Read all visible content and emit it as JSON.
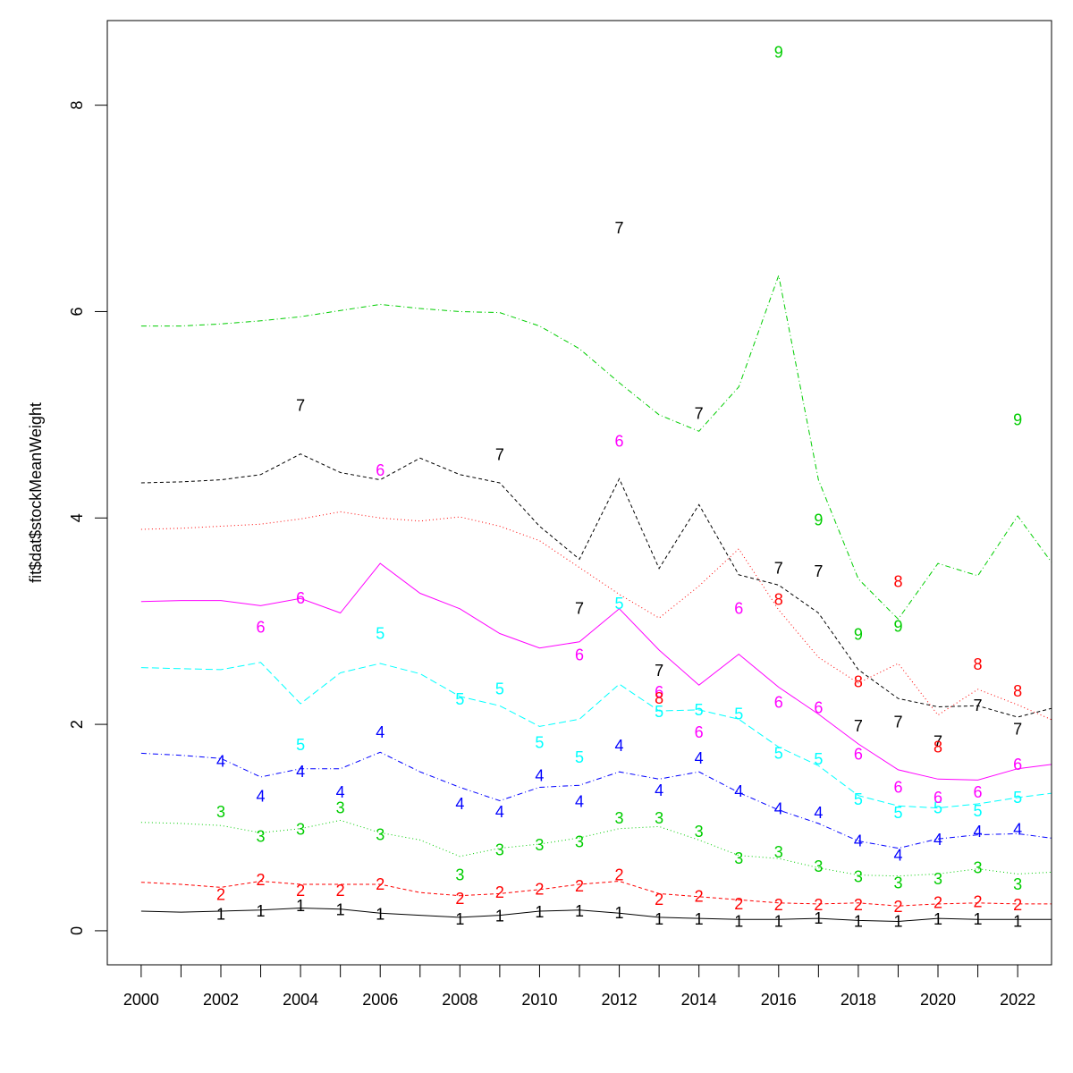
{
  "chart_data": {
    "type": "line",
    "title": "",
    "xlabel": "",
    "ylabel": "fit$dat$stockMeanWeight",
    "xlim": [
      1999.15,
      2022.85
    ],
    "ylim": [
      -0.33,
      8.82
    ],
    "x_ticks": [
      2000,
      2002,
      2004,
      2006,
      2008,
      2010,
      2012,
      2014,
      2016,
      2018,
      2020,
      2022
    ],
    "x_minor_ticks": [
      2000,
      2001,
      2002,
      2003,
      2004,
      2005,
      2006,
      2007,
      2008,
      2009,
      2010,
      2011,
      2012,
      2013,
      2014,
      2015,
      2016,
      2017,
      2018,
      2019,
      2020,
      2021,
      2022
    ],
    "y_ticks": [
      0,
      2,
      4,
      6,
      8
    ],
    "grid": false,
    "years": [
      2000,
      2001,
      2002,
      2003,
      2004,
      2005,
      2006,
      2007,
      2008,
      2009,
      2010,
      2011,
      2012,
      2013,
      2014,
      2015,
      2016,
      2017,
      2018,
      2019,
      2020,
      2021,
      2022,
      2023
    ],
    "series": [
      {
        "label": "1",
        "color": "#000000",
        "dash": "",
        "fitted": [
          0.19,
          0.18,
          0.19,
          0.2,
          0.22,
          0.21,
          0.17,
          0.15,
          0.13,
          0.15,
          0.19,
          0.2,
          0.17,
          0.13,
          0.12,
          0.11,
          0.11,
          0.12,
          0.1,
          0.09,
          0.12,
          0.11,
          0.11,
          0.11
        ],
        "observed": [
          null,
          null,
          0.17,
          0.2,
          0.25,
          0.21,
          0.17,
          null,
          0.12,
          0.15,
          0.19,
          0.2,
          0.18,
          0.12,
          0.12,
          0.1,
          0.1,
          0.13,
          0.1,
          0.1,
          0.12,
          0.12,
          0.1,
          null
        ]
      },
      {
        "label": "2",
        "color": "#ff0000",
        "dash": "4,3",
        "fitted": [
          0.47,
          0.45,
          0.42,
          0.48,
          0.45,
          0.45,
          0.45,
          0.37,
          0.34,
          0.36,
          0.4,
          0.45,
          0.48,
          0.36,
          0.33,
          0.3,
          0.27,
          0.26,
          0.27,
          0.24,
          0.26,
          0.27,
          0.26,
          0.26
        ],
        "observed": [
          null,
          null,
          0.36,
          0.5,
          0.4,
          0.4,
          0.46,
          null,
          0.32,
          0.38,
          0.41,
          0.44,
          0.55,
          0.31,
          0.34,
          0.27,
          0.26,
          0.26,
          0.26,
          0.24,
          0.28,
          0.29,
          0.26,
          null
        ]
      },
      {
        "label": "3",
        "color": "#00cd00",
        "dash": "1,3",
        "fitted": [
          1.05,
          1.04,
          1.02,
          0.95,
          0.99,
          1.07,
          0.95,
          0.88,
          0.72,
          0.8,
          0.84,
          0.9,
          0.99,
          1.01,
          0.88,
          0.73,
          0.7,
          0.61,
          0.54,
          0.53,
          0.55,
          0.6,
          0.55,
          0.57
        ],
        "observed": [
          null,
          null,
          1.16,
          0.92,
          0.99,
          1.2,
          0.94,
          null,
          0.55,
          0.79,
          0.84,
          0.87,
          1.1,
          1.1,
          0.97,
          0.71,
          0.77,
          0.63,
          0.53,
          0.47,
          0.51,
          0.62,
          0.46,
          null
        ]
      },
      {
        "label": "4",
        "color": "#0000ff",
        "dash": "6,3,1,3",
        "fitted": [
          1.72,
          1.7,
          1.67,
          1.49,
          1.57,
          1.57,
          1.73,
          1.54,
          1.39,
          1.26,
          1.39,
          1.41,
          1.54,
          1.47,
          1.54,
          1.34,
          1.17,
          1.04,
          0.87,
          0.8,
          0.89,
          0.93,
          0.94,
          0.89
        ],
        "observed": [
          null,
          null,
          1.65,
          1.31,
          1.55,
          1.35,
          1.93,
          null,
          1.24,
          1.16,
          1.51,
          1.26,
          1.8,
          1.37,
          1.68,
          1.36,
          1.19,
          1.15,
          0.88,
          0.74,
          0.89,
          0.97,
          0.99,
          null
        ]
      },
      {
        "label": "5",
        "color": "#00ffff",
        "dash": "8,4",
        "fitted": [
          2.55,
          2.54,
          2.53,
          2.6,
          2.2,
          2.5,
          2.59,
          2.49,
          2.27,
          2.18,
          1.98,
          2.05,
          2.39,
          2.13,
          2.14,
          2.05,
          1.78,
          1.6,
          1.31,
          1.21,
          1.19,
          1.23,
          1.29,
          1.34
        ],
        "observed": [
          null,
          null,
          null,
          null,
          1.81,
          null,
          2.89,
          null,
          2.25,
          2.35,
          1.83,
          1.69,
          3.18,
          2.13,
          2.15,
          2.11,
          1.73,
          1.67,
          1.28,
          1.15,
          1.2,
          1.17,
          1.3,
          null
        ]
      },
      {
        "label": "6",
        "color": "#ff00ff",
        "dash": "",
        "fitted": [
          3.19,
          3.2,
          3.2,
          3.15,
          3.22,
          3.08,
          3.56,
          3.27,
          3.12,
          2.88,
          2.74,
          2.8,
          3.12,
          2.72,
          2.38,
          2.68,
          2.36,
          2.1,
          1.81,
          1.56,
          1.47,
          1.46,
          1.57,
          1.62
        ],
        "observed": [
          null,
          null,
          null,
          2.95,
          3.23,
          null,
          4.47,
          null,
          null,
          null,
          null,
          2.68,
          4.75,
          2.32,
          1.93,
          3.13,
          2.22,
          2.17,
          1.72,
          1.4,
          1.3,
          1.35,
          1.62,
          null
        ]
      },
      {
        "label": "7",
        "color": "#000000",
        "dash": "4,3",
        "fitted": [
          4.34,
          4.35,
          4.37,
          4.42,
          4.62,
          4.44,
          4.37,
          4.58,
          4.42,
          4.34,
          3.92,
          3.6,
          4.38,
          3.51,
          4.13,
          3.45,
          3.35,
          3.08,
          2.53,
          2.25,
          2.17,
          2.18,
          2.07,
          2.17
        ],
        "observed": [
          null,
          null,
          null,
          null,
          5.1,
          null,
          null,
          null,
          null,
          4.62,
          null,
          3.13,
          6.82,
          2.53,
          5.02,
          null,
          3.52,
          3.49,
          1.99,
          2.03,
          1.84,
          2.19,
          1.96,
          null
        ]
      },
      {
        "label": "8",
        "color": "#ff0000",
        "dash": "1,3",
        "fitted": [
          3.89,
          3.9,
          3.92,
          3.94,
          3.99,
          4.06,
          4.0,
          3.97,
          4.01,
          3.92,
          3.78,
          3.52,
          3.26,
          3.03,
          3.34,
          3.7,
          3.11,
          2.65,
          2.4,
          2.59,
          2.09,
          2.34,
          2.19,
          2.02
        ],
        "observed": [
          null,
          null,
          null,
          null,
          null,
          null,
          null,
          null,
          null,
          null,
          null,
          null,
          null,
          2.26,
          null,
          null,
          3.22,
          null,
          2.42,
          3.39,
          1.79,
          2.59,
          2.33,
          null
        ]
      },
      {
        "label": "9",
        "color": "#00cd00",
        "dash": "6,3,1,3",
        "fitted": [
          5.86,
          5.86,
          5.88,
          5.91,
          5.95,
          6.01,
          6.07,
          6.03,
          6.0,
          5.99,
          5.86,
          5.64,
          5.31,
          5.0,
          4.84,
          5.27,
          6.35,
          4.37,
          3.41,
          3.02,
          3.56,
          3.44,
          4.02,
          3.49
        ],
        "observed": [
          null,
          null,
          null,
          null,
          null,
          null,
          null,
          null,
          null,
          null,
          null,
          null,
          null,
          null,
          null,
          null,
          8.52,
          3.99,
          2.88,
          2.96,
          null,
          null,
          4.96,
          null
        ]
      }
    ]
  }
}
